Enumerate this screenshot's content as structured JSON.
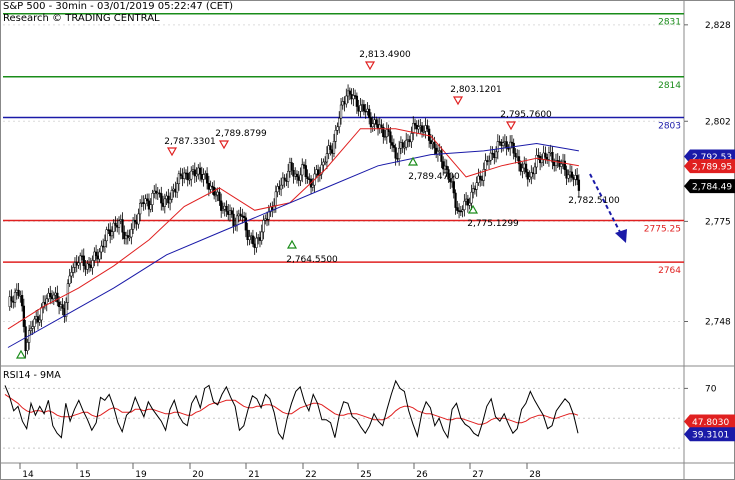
{
  "header": {
    "line1": "S&P 500 - 30min - 03/01/2019 05:22:47 (CET)",
    "line2": "Research © TRADING CENTRAL"
  },
  "chart_data": [
    {
      "type": "candlestick",
      "ylim": [
        2736,
        2832
      ],
      "y_ticks": [
        "2,828",
        "2,802",
        "2,775",
        "2,748"
      ],
      "y_tick_values": [
        2828,
        2802,
        2775,
        2748
      ],
      "x_ticks": [
        "14",
        "15",
        "19",
        "20",
        "21",
        "22",
        "25",
        "26",
        "27",
        "28"
      ],
      "close_path": [
        [
          0,
          2752
        ],
        [
          4,
          2756
        ],
        [
          7,
          2755
        ],
        [
          10,
          2742
        ],
        [
          14,
          2747
        ],
        [
          18,
          2750
        ],
        [
          22,
          2754
        ],
        [
          25,
          2756
        ],
        [
          28,
          2753
        ],
        [
          32,
          2751
        ],
        [
          36,
          2762
        ],
        [
          40,
          2765
        ],
        [
          44,
          2763
        ],
        [
          48,
          2764
        ],
        [
          52,
          2767
        ],
        [
          56,
          2771
        ],
        [
          60,
          2774
        ],
        [
          64,
          2774
        ],
        [
          68,
          2770
        ],
        [
          72,
          2775
        ],
        [
          76,
          2780
        ],
        [
          80,
          2780
        ],
        [
          84,
          2783
        ],
        [
          87,
          2781
        ],
        [
          91,
          2780
        ],
        [
          94,
          2784
        ],
        [
          97,
          2786
        ],
        [
          100,
          2788
        ],
        [
          104,
          2787
        ],
        [
          108,
          2789
        ],
        [
          112,
          2786
        ],
        [
          116,
          2784
        ],
        [
          120,
          2780
        ],
        [
          124,
          2778
        ],
        [
          128,
          2775
        ],
        [
          132,
          2777
        ],
        [
          136,
          2772
        ],
        [
          140,
          2768
        ],
        [
          144,
          2773
        ],
        [
          148,
          2777
        ],
        [
          152,
          2782
        ],
        [
          156,
          2786
        ],
        [
          160,
          2789
        ],
        [
          164,
          2787
        ],
        [
          168,
          2789
        ],
        [
          172,
          2785
        ],
        [
          176,
          2788
        ],
        [
          180,
          2792
        ],
        [
          184,
          2795
        ],
        [
          188,
          2803
        ],
        [
          192,
          2810
        ],
        [
          196,
          2808
        ],
        [
          200,
          2806
        ],
        [
          204,
          2804
        ],
        [
          208,
          2801
        ],
        [
          212,
          2800
        ],
        [
          216,
          2798
        ],
        [
          220,
          2793
        ],
        [
          224,
          2795
        ],
        [
          228,
          2798
        ],
        [
          232,
          2801
        ],
        [
          236,
          2800
        ],
        [
          240,
          2797
        ],
        [
          244,
          2793
        ],
        [
          248,
          2790
        ],
        [
          252,
          2784
        ],
        [
          256,
          2777
        ],
        [
          260,
          2780
        ],
        [
          264,
          2783
        ],
        [
          268,
          2787
        ],
        [
          272,
          2791
        ],
        [
          276,
          2794
        ],
        [
          280,
          2796
        ],
        [
          284,
          2796
        ],
        [
          288,
          2793
        ],
        [
          292,
          2789
        ],
        [
          296,
          2787
        ],
        [
          300,
          2791
        ],
        [
          304,
          2793
        ],
        [
          308,
          2792
        ],
        [
          312,
          2791
        ],
        [
          316,
          2789
        ],
        [
          320,
          2787
        ],
        [
          324,
          2785
        ]
      ],
      "ma_fast_path": [
        [
          0,
          2746
        ],
        [
          20,
          2752
        ],
        [
          40,
          2757
        ],
        [
          60,
          2763
        ],
        [
          80,
          2770
        ],
        [
          100,
          2779
        ],
        [
          120,
          2784
        ],
        [
          140,
          2778
        ],
        [
          160,
          2780
        ],
        [
          180,
          2789
        ],
        [
          200,
          2800
        ],
        [
          220,
          2800
        ],
        [
          240,
          2798
        ],
        [
          260,
          2787
        ],
        [
          280,
          2790
        ],
        [
          300,
          2792
        ],
        [
          324,
          2790
        ]
      ],
      "ma_slow_path": [
        [
          0,
          2741
        ],
        [
          30,
          2749
        ],
        [
          60,
          2757
        ],
        [
          90,
          2766
        ],
        [
          120,
          2772
        ],
        [
          150,
          2778
        ],
        [
          180,
          2784
        ],
        [
          210,
          2790
        ],
        [
          240,
          2793
        ],
        [
          270,
          2794
        ],
        [
          300,
          2796
        ],
        [
          324,
          2794
        ]
      ],
      "resistance": [
        {
          "value": 2831,
          "label": "2831",
          "color": "#1a8c1a"
        },
        {
          "value": 2814,
          "label": "2814",
          "color": "#1a8c1a"
        },
        {
          "value": 2803,
          "label": "2803",
          "color": "#1a1aa8"
        }
      ],
      "support": [
        {
          "value": 2775.25,
          "label": "2775.25",
          "color": "#e02020"
        },
        {
          "value": 2764,
          "label": "2764",
          "color": "#e02020"
        }
      ],
      "price_tags": [
        {
          "label": "2,792.53",
          "value": 2792.5,
          "bg": "#1a1aa8",
          "fg": "#ffffff"
        },
        {
          "label": "2,789.95",
          "value": 2789.9,
          "bg": "#e02020",
          "fg": "#ffffff"
        },
        {
          "label": "2,784.49",
          "value": 2784.5,
          "bg": "#000000",
          "fg": "#ffffff"
        }
      ],
      "annotations": [
        {
          "text": "2,813.4900",
          "kind": "top"
        },
        {
          "text": "2,803.1201",
          "kind": "top"
        },
        {
          "text": "2,795.7600",
          "kind": "top"
        },
        {
          "text": "2,787.3301",
          "kind": "top"
        },
        {
          "text": "2,789.8799",
          "kind": "top"
        },
        {
          "text": "2,789.4700",
          "kind": "bottom"
        },
        {
          "text": "2,775.1299",
          "kind": "bottom"
        },
        {
          "text": "2,764.5500",
          "kind": "bottom"
        },
        {
          "text": "2,782.5100",
          "kind": "bottom"
        }
      ]
    },
    {
      "type": "line",
      "title": "RSI14 - 9MA",
      "ylim": [
        20,
        85
      ],
      "y_ticks": [
        "70"
      ],
      "y_tick_values": [
        70
      ],
      "levels": [
        70,
        50,
        30
      ],
      "rsi_tags": [
        {
          "label": "47.8030",
          "value": 47.8,
          "bg": "#e02020"
        },
        {
          "label": "39.3101",
          "value": 39.3,
          "bg": "#1a1aa8"
        }
      ],
      "rsi": [
        72,
        65,
        55,
        58,
        48,
        43,
        60,
        52,
        58,
        53,
        62,
        45,
        40,
        37,
        60,
        48,
        56,
        62,
        55,
        49,
        42,
        47,
        64,
        62,
        66,
        58,
        47,
        41,
        52,
        55,
        64,
        57,
        51,
        61,
        56,
        52,
        48,
        42,
        56,
        62,
        52,
        47,
        45,
        60,
        65,
        57,
        70,
        72,
        61,
        59,
        66,
        71,
        64,
        58,
        42,
        45,
        56,
        65,
        63,
        57,
        66,
        63,
        54,
        40,
        36,
        50,
        60,
        68,
        71,
        61,
        55,
        66,
        60,
        49,
        49,
        47,
        37,
        52,
        61,
        60,
        51,
        49,
        44,
        40,
        45,
        53,
        48,
        45,
        56,
        66,
        75,
        70,
        68,
        55,
        46,
        38,
        53,
        61,
        57,
        45,
        50,
        42,
        37,
        56,
        60,
        50,
        46,
        44,
        40,
        38,
        47,
        58,
        63,
        51,
        48,
        53,
        46,
        40,
        43,
        56,
        60,
        68,
        62,
        57,
        52,
        43,
        45,
        55,
        59,
        63,
        60,
        52,
        40
      ],
      "rsi_ma": [
        66,
        64,
        62,
        60,
        57,
        55,
        54,
        55,
        55,
        54,
        55,
        54,
        52,
        51,
        51,
        51,
        52,
        53,
        54,
        54,
        52,
        51,
        52,
        54,
        56,
        57,
        56,
        54,
        54,
        54,
        56,
        56,
        55,
        56,
        56,
        55,
        54,
        53,
        53,
        54,
        54,
        53,
        52,
        52,
        54,
        55,
        57,
        59,
        60,
        60,
        61,
        62,
        62,
        62,
        60,
        58,
        57,
        57,
        58,
        58,
        59,
        59,
        58,
        56,
        54,
        53,
        53,
        55,
        57,
        58,
        59,
        60,
        60,
        59,
        57,
        55,
        53,
        52,
        52,
        53,
        53,
        53,
        52,
        51,
        50,
        49,
        49,
        49,
        50,
        52,
        55,
        57,
        58,
        58,
        57,
        55,
        54,
        53,
        53,
        52,
        51,
        50,
        49,
        49,
        50,
        50,
        49,
        48,
        47,
        46,
        46,
        47,
        49,
        50,
        50,
        50,
        49,
        48,
        47,
        47,
        48,
        50,
        51,
        52,
        52,
        51,
        50,
        50,
        51,
        52,
        53,
        53,
        52
      ]
    }
  ]
}
